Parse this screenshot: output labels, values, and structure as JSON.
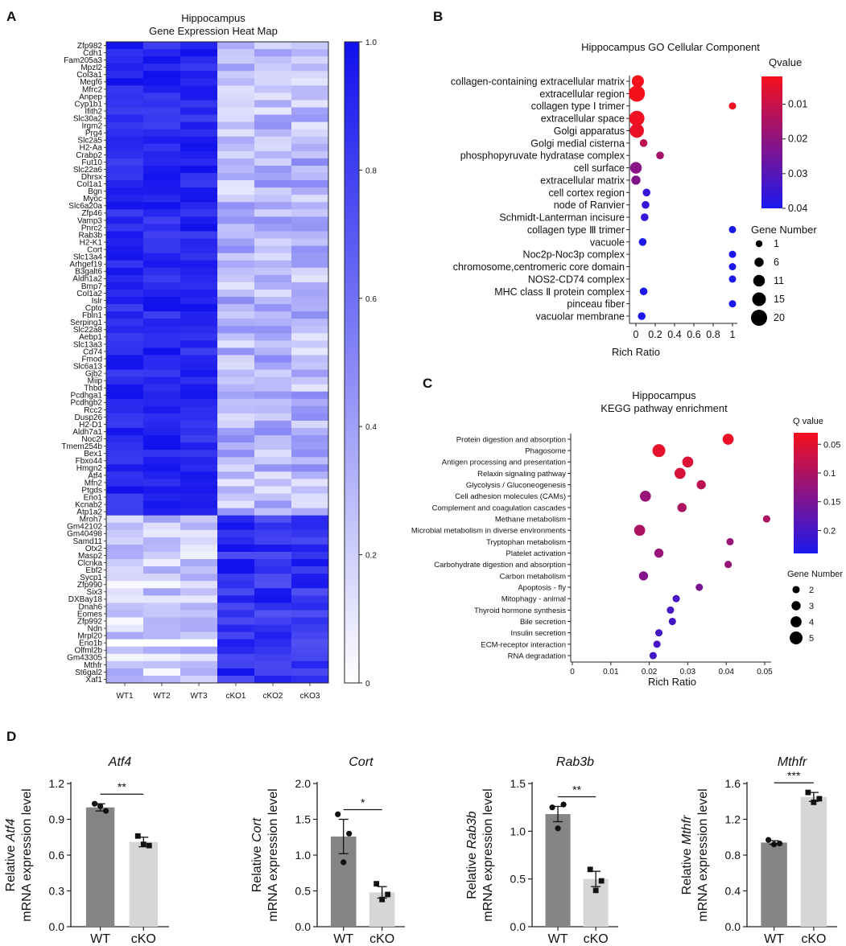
{
  "panel_letters": {
    "a": "A",
    "b": "B",
    "c": "C",
    "d": "D"
  },
  "chart_data": [
    {
      "id": "A",
      "type": "heatmap",
      "title_line1": "Hippocampus",
      "title_line2": "Gene Expression Heat Map",
      "columns": [
        "WT1",
        "WT2",
        "WT3",
        "cKO1",
        "cKO2",
        "cKO3"
      ],
      "rows": [
        "Zfp982",
        "Cdh1",
        "Fam205a3",
        "Mpzl2",
        "Col3a1",
        "Megf6",
        "Mfrc2",
        "Anpep",
        "Cyp1b1",
        "Ifith2",
        "Slc30a2",
        "Irgm2",
        "Prg4",
        "Slc2a5",
        "H2-Aa",
        "Crabp2",
        "Fut10",
        "Slc22a6",
        "Dhrsx",
        "Col1a1",
        "Bgn",
        "Myoc",
        "Slc6a20a",
        "Zfp46",
        "Vamp3",
        "Pnrc2",
        "Rab3b",
        "H2-K1",
        "Cort",
        "Slc13a4",
        "Arhgef19",
        "B3galt6",
        "Aldh1a2",
        "Bmp7",
        "Col1a2",
        "Islr",
        "Cpto",
        "Fbln1",
        "Serping1",
        "Slc22a8",
        "Aebp1",
        "Slc13a3",
        "Cd74",
        "Fmod",
        "Slc6a13",
        "Gjb2",
        "Miip",
        "Thbd",
        "Pcdhga1",
        "Pcdhgb2",
        "Rcc2",
        "Dusp26",
        "H2-D1",
        "Aldh7a1",
        "Noc2l",
        "Tmem254b",
        "Bex1",
        "Fbxo44",
        "Hmgn2",
        "Atf4",
        "Mfn2",
        "Ptgds",
        "Eno1",
        "Kcnab2",
        "Atp1a2",
        "Mroh7",
        "Gm42102",
        "Gm40498",
        "Samd11",
        "Otx2",
        "Masp2",
        "Clcnka",
        "Ebf2",
        "Sycp1",
        "Zfp990",
        "Six3",
        "DXBay18",
        "Dnah6",
        "Eomes",
        "Zfp992",
        "Ndn",
        "Mrpl20",
        "Eno1b",
        "Olfml2b",
        "Gm43305",
        "Mthfr",
        "St6gal2",
        "Xaf1"
      ],
      "colorbar_ticks": [
        "1.0",
        "0.8",
        "0.6",
        "0.4",
        "0.2",
        "0"
      ],
      "color_low": "#ffffff",
      "color_high": "#1010ee",
      "value_range": [
        0,
        1
      ]
    },
    {
      "id": "B",
      "type": "scatter",
      "title": "Hippocampus GO Cellular Component",
      "xlabel": "Rich Ratio",
      "x_ticks": [
        "0",
        "0.2",
        "0.4",
        "0.6",
        "0.8",
        "1"
      ],
      "xlim": [
        0,
        1
      ],
      "legend_color_title": "Qvalue",
      "legend_color_ticks": [
        "0.01",
        "0.02",
        "0.03",
        "0.04"
      ],
      "color_range": [
        0.002,
        0.04
      ],
      "legend_size_title": "Gene Number",
      "legend_size_values": [
        1,
        6,
        11,
        15,
        20
      ],
      "legend_size_labels": [
        "1",
        "6",
        "11",
        "15",
        "20"
      ],
      "size_range": [
        1,
        20
      ],
      "terms": [
        {
          "name": "collagen-containing extracellular matrix",
          "x": 0.02,
          "q": 0.002,
          "n": 12
        },
        {
          "name": "extracellular region",
          "x": 0.01,
          "q": 0.002,
          "n": 20
        },
        {
          "name": "collagen type Ⅰ trimer",
          "x": 1.0,
          "q": 0.003,
          "n": 2
        },
        {
          "name": "extracellular space",
          "x": 0.01,
          "q": 0.003,
          "n": 18
        },
        {
          "name": "Golgi apparatus",
          "x": 0.01,
          "q": 0.004,
          "n": 16
        },
        {
          "name": "Golgi medial cisterna",
          "x": 0.08,
          "q": 0.012,
          "n": 3
        },
        {
          "name": "phosphopyruvate hydratase complex",
          "x": 0.25,
          "q": 0.016,
          "n": 3
        },
        {
          "name": "cell surface",
          "x": 0.0,
          "q": 0.021,
          "n": 11
        },
        {
          "name": "extracellular matrix",
          "x": 0.0,
          "q": 0.022,
          "n": 6
        },
        {
          "name": "cell cortex region",
          "x": 0.11,
          "q": 0.036,
          "n": 3
        },
        {
          "name": "node of Ranvier",
          "x": 0.1,
          "q": 0.036,
          "n": 3
        },
        {
          "name": "Schmidt-Lanterman incisure",
          "x": 0.09,
          "q": 0.036,
          "n": 3
        },
        {
          "name": "collagen type Ⅲ trimer",
          "x": 1.0,
          "q": 0.04,
          "n": 2
        },
        {
          "name": "vacuole",
          "x": 0.07,
          "q": 0.04,
          "n": 3
        },
        {
          "name": "Noc2p-Noc3p complex",
          "x": 1.0,
          "q": 0.04,
          "n": 2
        },
        {
          "name": "chromosome,centromeric core domain",
          "x": 1.0,
          "q": 0.04,
          "n": 2
        },
        {
          "name": "NOS2-CD74 complex",
          "x": 1.0,
          "q": 0.04,
          "n": 2
        },
        {
          "name": "MHC class Ⅱ protein complex",
          "x": 0.08,
          "q": 0.04,
          "n": 3
        },
        {
          "name": "pinceau fiber",
          "x": 1.0,
          "q": 0.04,
          "n": 2
        },
        {
          "name": "vacuolar membrane",
          "x": 0.06,
          "q": 0.04,
          "n": 3
        }
      ]
    },
    {
      "id": "C",
      "type": "scatter",
      "title_line1": "Hippocampus",
      "title_line2": "KEGG pathway enrichment",
      "xlabel": "Rich Ratio",
      "x_ticks": [
        "0",
        "0.01",
        "0.02",
        "0.03",
        "0.04",
        "0.05"
      ],
      "xlim": [
        0,
        0.05
      ],
      "legend_color_title": "Q value",
      "legend_color_ticks": [
        "0.05",
        "0.1",
        "0.15",
        "0.2"
      ],
      "color_range": [
        0.03,
        0.24
      ],
      "legend_size_title": "Gene Number",
      "legend_size_values": [
        2,
        3,
        4,
        5
      ],
      "legend_size_labels": [
        "2",
        "3",
        "4",
        "5"
      ],
      "size_range": [
        1,
        5
      ],
      "terms": [
        {
          "name": "Protein digestion and absorption",
          "x": 0.0405,
          "q": 0.04,
          "n": 4
        },
        {
          "name": "Phagosome",
          "x": 0.0225,
          "q": 0.045,
          "n": 5
        },
        {
          "name": "Antigen processing and presentation",
          "x": 0.03,
          "q": 0.055,
          "n": 4
        },
        {
          "name": "Relaxin signaling pathway",
          "x": 0.028,
          "q": 0.06,
          "n": 4
        },
        {
          "name": "Glycolysis / Gluconeogenesis",
          "x": 0.0335,
          "q": 0.085,
          "n": 3
        },
        {
          "name": "Cell adhesion molecules (CAMs)",
          "x": 0.019,
          "q": 0.12,
          "n": 4
        },
        {
          "name": "Complement and coagulation cascades",
          "x": 0.0285,
          "q": 0.1,
          "n": 3
        },
        {
          "name": "Methane metabolism",
          "x": 0.0505,
          "q": 0.1,
          "n": 2
        },
        {
          "name": "Microbial metabolism in diverse environments",
          "x": 0.0175,
          "q": 0.1,
          "n": 4
        },
        {
          "name": "Tryptophan metabolism",
          "x": 0.041,
          "q": 0.12,
          "n": 2
        },
        {
          "name": "Platelet activation",
          "x": 0.0225,
          "q": 0.12,
          "n": 3
        },
        {
          "name": "Carbohydrate digestion and absorption",
          "x": 0.0405,
          "q": 0.12,
          "n": 2
        },
        {
          "name": "Carbon metabolism",
          "x": 0.0185,
          "q": 0.14,
          "n": 3
        },
        {
          "name": "Apoptosis - fly",
          "x": 0.033,
          "q": 0.15,
          "n": 2
        },
        {
          "name": "Mitophagy - animal",
          "x": 0.027,
          "q": 0.2,
          "n": 2
        },
        {
          "name": "Thyroid hormone synthesis",
          "x": 0.0255,
          "q": 0.2,
          "n": 2
        },
        {
          "name": "Bile secretion",
          "x": 0.026,
          "q": 0.2,
          "n": 2
        },
        {
          "name": "Insulin secretion",
          "x": 0.0225,
          "q": 0.2,
          "n": 2
        },
        {
          "name": "ECM-receptor interaction",
          "x": 0.022,
          "q": 0.2,
          "n": 2
        },
        {
          "name": "RNA degradation",
          "x": 0.021,
          "q": 0.2,
          "n": 2
        }
      ]
    },
    {
      "id": "D1",
      "type": "bar",
      "gene": "Atf4",
      "ylabel_prefix": "Relative ",
      "ylabel_line2": "mRNA expression level",
      "categories": [
        "WT",
        "cKO"
      ],
      "values": [
        1.0,
        0.71
      ],
      "errors": [
        0.03,
        0.04
      ],
      "points": [
        [
          1.03,
          0.97,
          1.01
        ],
        [
          0.76,
          0.68,
          0.69
        ]
      ],
      "markers": [
        "circle",
        "square"
      ],
      "ylim": [
        0,
        1.2
      ],
      "y_ticks": [
        0,
        0.3,
        0.6,
        0.9,
        1.2
      ],
      "y_tick_labels": [
        "0.0",
        "0.3",
        "0.6",
        "0.9",
        "1.2"
      ],
      "significance": "**"
    },
    {
      "id": "D2",
      "type": "bar",
      "gene": "Cort",
      "ylabel_prefix": "Relative ",
      "ylabel_line2": "mRNA expression level",
      "categories": [
        "WT",
        "cKO"
      ],
      "values": [
        1.26,
        0.48
      ],
      "errors": [
        0.24,
        0.08
      ],
      "points": [
        [
          1.57,
          1.3,
          0.9
        ],
        [
          0.6,
          0.45,
          0.38
        ]
      ],
      "markers": [
        "circle",
        "square"
      ],
      "ylim": [
        0,
        2.0
      ],
      "y_ticks": [
        0,
        0.5,
        1.0,
        1.5,
        2.0
      ],
      "y_tick_labels": [
        "0.0",
        "0.5",
        "1.0",
        "1.5",
        "2.0"
      ],
      "significance": "*"
    },
    {
      "id": "D3",
      "type": "bar",
      "gene": "Rab3b",
      "ylabel_prefix": "Relative ",
      "ylabel_line2": "mRNA expression level",
      "categories": [
        "WT",
        "cKO"
      ],
      "values": [
        1.18,
        0.5
      ],
      "errors": [
        0.08,
        0.08
      ],
      "points": [
        [
          1.25,
          1.28,
          1.03
        ],
        [
          0.6,
          0.48,
          0.38
        ]
      ],
      "markers": [
        "circle",
        "square"
      ],
      "ylim": [
        0,
        1.5
      ],
      "y_ticks": [
        0,
        0.5,
        1.0,
        1.5
      ],
      "y_tick_labels": [
        "0.0",
        "0.5",
        "1.0",
        "1.5"
      ],
      "significance": "**"
    },
    {
      "id": "D4",
      "type": "bar",
      "gene": "Mthfr",
      "ylabel_prefix": "Relative ",
      "ylabel_line2": "mRNA expression level",
      "categories": [
        "WT",
        "cKO"
      ],
      "values": [
        0.94,
        1.45
      ],
      "errors": [
        0.02,
        0.05
      ],
      "points": [
        [
          0.97,
          0.93,
          0.92
        ],
        [
          1.5,
          1.43,
          1.39
        ]
      ],
      "markers": [
        "circle",
        "square"
      ],
      "ylim": [
        0,
        1.6
      ],
      "y_ticks": [
        0,
        0.4,
        0.8,
        1.2,
        1.6
      ],
      "y_tick_labels": [
        "0.0",
        "0.4",
        "0.8",
        "1.2",
        "1.6"
      ],
      "significance": "***"
    }
  ]
}
